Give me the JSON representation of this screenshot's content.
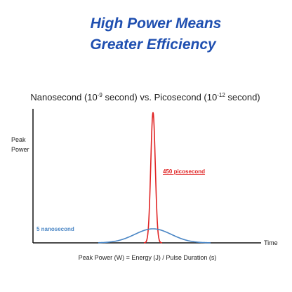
{
  "header": {
    "title_line1": "High Power Means",
    "title_line2": "Greater Efficiency"
  },
  "diagram": {
    "title_parts": [
      "Nanosecond (10",
      "-9",
      " second) vs. Picosecond (10",
      "-12",
      " second)"
    ],
    "y_label": [
      "Peak",
      "Power"
    ],
    "x_label": "Time",
    "formula": "Peak Power (W) = Energy (J) / Pulse Duration (s)",
    "pulses": [
      {
        "label": "450 picosecond",
        "color": "#e02424"
      },
      {
        "label": "5 nanosecond",
        "color": "#4a86c5"
      }
    ]
  }
}
